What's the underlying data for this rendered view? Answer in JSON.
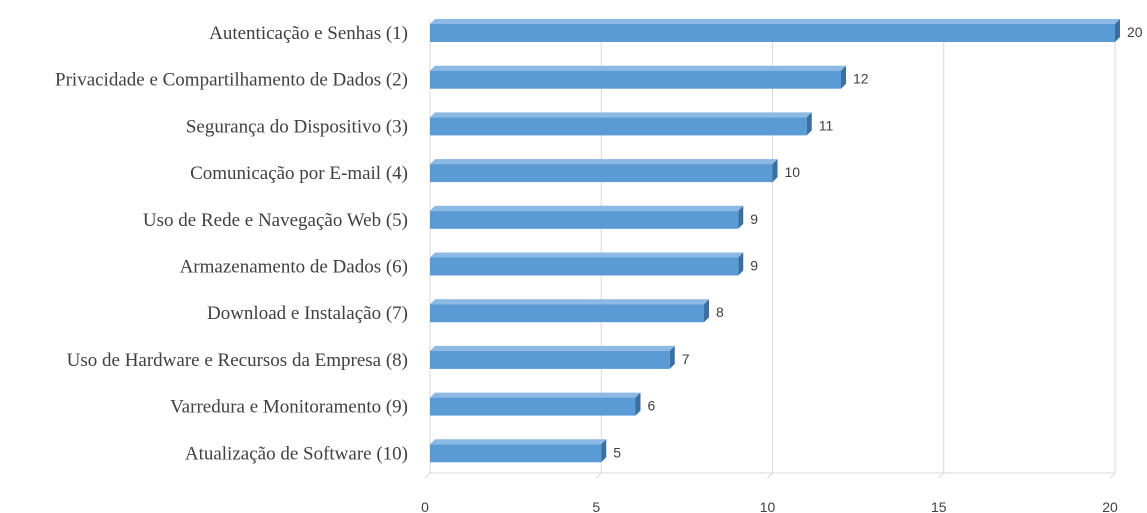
{
  "chart_data": {
    "type": "bar",
    "orientation": "horizontal",
    "categories": [
      "Autenticação e Senhas (1)",
      "Privacidade e Compartilhamento de Dados (2)",
      "Segurança do Dispositivo (3)",
      "Comunicação por E-mail (4)",
      "Uso de Rede e Navegação Web (5)",
      "Armazenamento de Dados (6)",
      "Download e Instalação (7)",
      "Uso de Hardware e Recursos da Empresa (8)",
      "Varredura e Monitoramento (9)",
      "Atualização de Software (10)"
    ],
    "values": [
      20,
      12,
      11,
      10,
      9,
      9,
      8,
      7,
      6,
      5
    ],
    "xlim": [
      0,
      20
    ],
    "xticks": [
      0,
      5,
      10,
      15,
      20
    ],
    "title": "",
    "xlabel": "",
    "ylabel": "",
    "grid": true,
    "data_labels": true,
    "colors": {
      "bar_front": "#5b9bd5",
      "bar_top": "#8cb9e3",
      "bar_side": "#3a6f9f",
      "grid": "#d9d9d9",
      "text": "#404040"
    }
  }
}
